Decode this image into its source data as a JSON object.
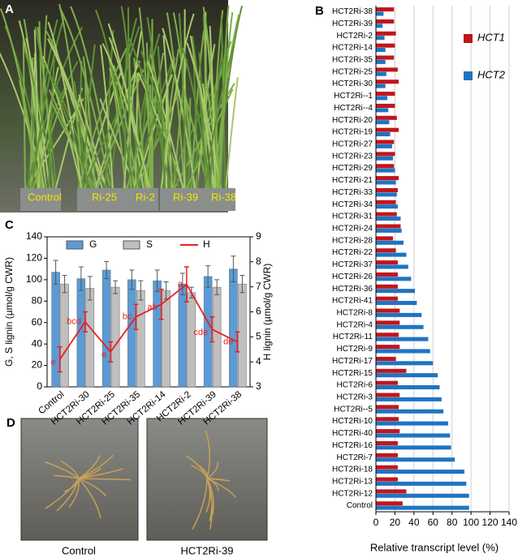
{
  "chart_data": [
    {
      "type": "barh",
      "panel": "B",
      "x_label": "Relative transcript level (%)",
      "categories": [
        "HCT2Ri-38",
        "HCT2Ri-39",
        "HCT2Ri-2",
        "HCT2Ri-14",
        "HCT2Ri-35",
        "HCT2Ri-25",
        "HCT2Ri-30",
        "HCT2Ri--1",
        "HCT2Ri--4",
        "HCT2Ri-20",
        "HCT2Ri-19",
        "HCT2Ri-27",
        "HCT2Ri-23",
        "HCT2Ri-29",
        "HCT2Ri-21",
        "HCT2Ri-33",
        "HCT2Ri-34",
        "HCT2Ri-31",
        "HCT2Ri-24",
        "HCT2Ri-28",
        "HCT2Ri-22",
        "HCT2Ri-37",
        "HCT2Ri-26",
        "HCT2Ri-36",
        "HCT2Ri-41",
        "HCT2Ri-8",
        "HCT2Ri-4",
        "HCT2Ri-11",
        "HCT2Ri-9",
        "HCT2Ri-17",
        "HCT2Ri-15",
        "HCT2Ri-6",
        "HCT2Ri-3",
        "HCT2Ri--5",
        "HCT2Ri-10",
        "HCT2Ri-40",
        "HCT2Ri-16",
        "HCT2Ri-7",
        "HCT2Ri-18",
        "HCT2Ri-13",
        "HCT2Ri-12",
        "Control"
      ],
      "series": [
        {
          "name": "HCT1",
          "color": "#c0161e",
          "values": [
            19,
            19,
            21,
            20,
            19,
            23,
            24,
            20,
            20,
            22,
            24,
            19,
            20,
            19,
            24,
            23,
            21,
            22,
            26,
            18,
            21,
            23,
            23,
            23,
            23,
            25,
            25,
            24,
            25,
            21,
            32,
            23,
            25,
            24,
            24,
            25,
            23,
            23,
            23,
            23,
            32,
            28
          ]
        },
        {
          "name": "HCT2",
          "color": "#1f74c2",
          "values": [
            8,
            7,
            9,
            10,
            10,
            11,
            10,
            12,
            13,
            14,
            15,
            17,
            18,
            20,
            21,
            22,
            23,
            26,
            27,
            29,
            32,
            34,
            37,
            41,
            43,
            48,
            50,
            55,
            57,
            60,
            65,
            67,
            69,
            71,
            76,
            78,
            79,
            83,
            93,
            95,
            98,
            98
          ]
        }
      ],
      "xlim": [
        0,
        140
      ],
      "xticks": [
        0,
        20,
        40,
        60,
        80,
        100,
        120,
        140
      ],
      "grid": true,
      "legend": "upper right"
    },
    {
      "type": "bar_line",
      "panel": "C",
      "y_label": "G, S lignin (µmol/g CWR)",
      "y2_label": "H lignin (µmol/g CWR)",
      "categories": [
        "Control",
        "HCT2Ri-30",
        "HCT2Ri-25",
        "HCT2Ri-35",
        "HCT2Ri-14",
        "HCT2Ri-2",
        "HCT2Ri-39",
        "HCT2Ri-38"
      ],
      "series": [
        {
          "name": "G",
          "color": "#5b9bd5",
          "values": [
            107,
            101,
            109,
            100,
            99,
            96,
            103,
            110
          ],
          "errors": [
            11,
            11,
            8,
            9,
            10,
            10,
            10,
            12
          ]
        },
        {
          "name": "S",
          "color": "#bfbfbf",
          "values": [
            96,
            92,
            93,
            90,
            90,
            88,
            93,
            96
          ],
          "errors": [
            8,
            11,
            6,
            9,
            8,
            5,
            7,
            8
          ]
        },
        {
          "name": "H",
          "color": "#e8201f",
          "axis": "y2",
          "values": [
            4.1,
            5.6,
            4.4,
            5.8,
            6.3,
            7.1,
            5.3,
            4.8
          ],
          "errors": [
            0.5,
            0.4,
            0.4,
            0.5,
            0.6,
            0.7,
            0.5,
            0.4
          ],
          "labels": [
            "e",
            "bcd",
            "e",
            "bc",
            "ab",
            "a",
            "cde",
            "de"
          ]
        }
      ],
      "ylim": [
        0,
        140
      ],
      "yticks": [
        0,
        20,
        40,
        60,
        80,
        100,
        120,
        140
      ],
      "y2lim": [
        3,
        9
      ],
      "y2ticks": [
        3,
        4,
        5,
        6,
        7,
        8,
        9
      ]
    }
  ],
  "photos": {
    "A": {
      "panel": "A",
      "labels": [
        "Control",
        "Ri-25",
        "Ri-2",
        "Ri-39",
        "Ri-38"
      ]
    },
    "D": {
      "panel": "D",
      "labels": [
        "Control",
        "HCT2Ri-39"
      ]
    }
  }
}
